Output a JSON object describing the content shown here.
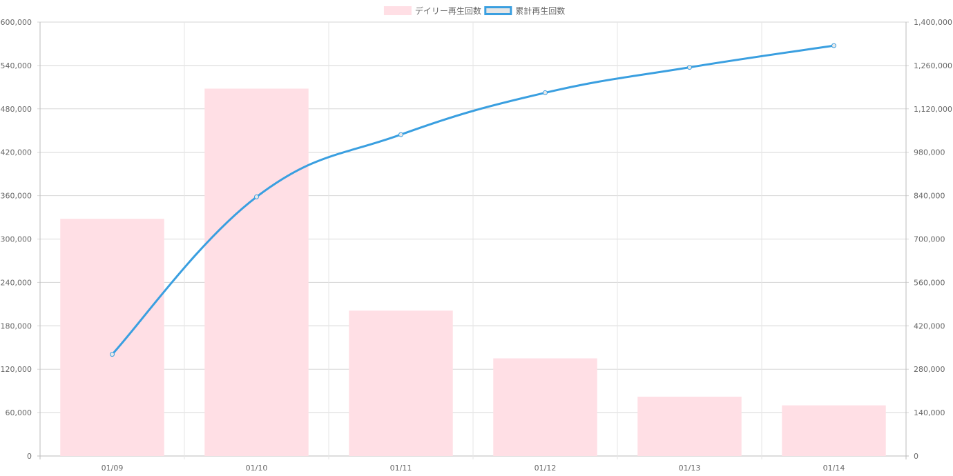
{
  "chart_data": {
    "type": "bar",
    "categories": [
      "01/09",
      "01/10",
      "01/11",
      "01/12",
      "01/13",
      "01/14"
    ],
    "series": [
      {
        "name": "デイリー再生回数",
        "type": "bar",
        "axis": "left",
        "color": "#ffdfe5",
        "values": [
          328000,
          508000,
          201000,
          135000,
          82000,
          70000
        ]
      },
      {
        "name": "累計再生回数",
        "type": "line",
        "axis": "right",
        "color": "#3a9fe0",
        "values": [
          328000,
          836000,
          1037000,
          1172000,
          1254000,
          1324000
        ]
      }
    ],
    "y_left": {
      "min": 0,
      "max": 600000,
      "ticks": [
        "0",
        "60,000",
        "120,000",
        "180,000",
        "240,000",
        "300,000",
        "360,000",
        "420,000",
        "480,000",
        "540,000",
        "600,000"
      ]
    },
    "y_right": {
      "min": 0,
      "max": 1400000,
      "ticks": [
        "0",
        "140,000",
        "280,000",
        "420,000",
        "560,000",
        "700,000",
        "840,000",
        "980,000",
        "1,120,000",
        "1,260,000",
        "1,400,000"
      ]
    },
    "grid": true,
    "legend": "top-center"
  }
}
